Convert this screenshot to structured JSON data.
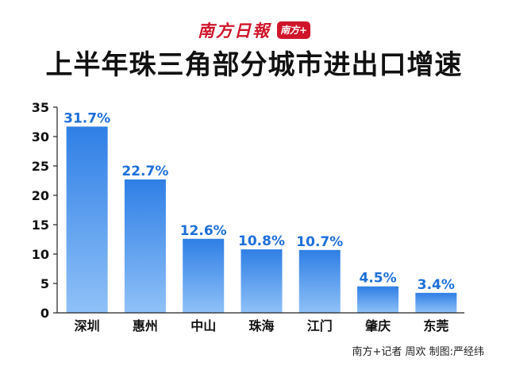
{
  "header": {
    "logo_text": "南方日報",
    "logo_badge": "南方+",
    "title": "上半年珠三角部分城市进出口增速"
  },
  "credit": "南方+记者 周欢 制图:严经纬",
  "colors": {
    "bar_top": "#2f7fe6",
    "bar_bottom": "#8fc1f7",
    "label": "#1e6fd9",
    "axis": "#222222"
  },
  "chart_data": {
    "type": "bar",
    "title": "上半年珠三角部分城市进出口增速",
    "categories": [
      "深圳",
      "惠州",
      "中山",
      "珠海",
      "江门",
      "肇庆",
      "东莞"
    ],
    "values": [
      31.7,
      22.7,
      12.6,
      10.8,
      10.7,
      4.5,
      3.4
    ],
    "data_labels": [
      "31.7%",
      "22.7%",
      "12.6%",
      "10.8%",
      "10.7%",
      "4.5%",
      "3.4%"
    ],
    "ylim": [
      0,
      35
    ],
    "yticks": [
      0,
      5,
      10,
      15,
      20,
      25,
      30,
      35
    ],
    "xlabel": "",
    "ylabel": "",
    "grid": false
  }
}
